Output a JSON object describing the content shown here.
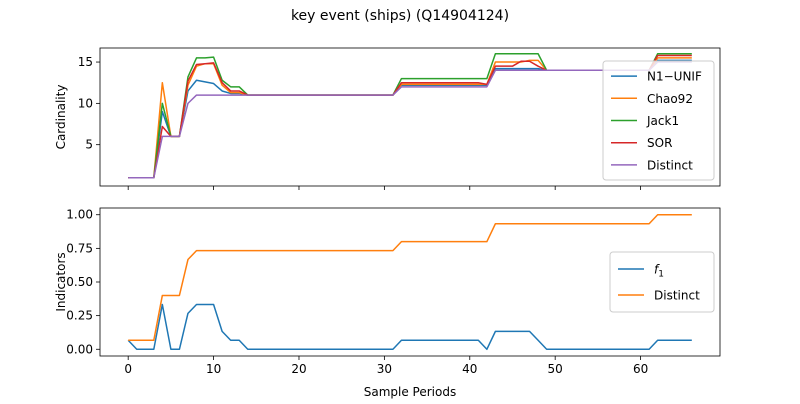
{
  "title": "key event (ships) (Q14904124)",
  "colors": {
    "N1": "#1f77b4",
    "Chao92": "#ff7f0e",
    "Jack1": "#2ca02c",
    "SOR": "#d62728",
    "Distinct": "#9467bd"
  },
  "chart_data": [
    {
      "type": "line",
      "ylabel": "Cardinality",
      "xlim": [
        -3.3,
        69.3
      ],
      "ylim": [
        0,
        16.7
      ],
      "xticks": [
        0,
        10,
        20,
        30,
        40,
        50,
        60
      ],
      "yticks": [
        5,
        10,
        15
      ],
      "ytick_labels": [
        "5",
        "10",
        "15"
      ],
      "show_xtick_labels": false,
      "legend_position": "lower-right",
      "series": [
        {
          "name": "N1−UNIF",
          "color": "#1f77b4",
          "values": [
            1,
            1,
            1,
            1,
            9,
            6,
            6,
            11.5,
            12.8,
            12.6,
            12.4,
            11.5,
            11.2,
            11.2,
            11,
            11,
            11,
            11,
            11,
            11,
            11,
            11,
            11,
            11,
            11,
            11,
            11,
            11,
            11,
            11,
            11,
            11,
            12.2,
            12.2,
            12.2,
            12.2,
            12.2,
            12.2,
            12.2,
            12.2,
            12.2,
            12.2,
            12.2,
            14.2,
            14.2,
            14.2,
            14.2,
            14.2,
            14.2,
            14,
            14,
            14,
            14,
            14,
            14,
            14,
            14,
            14,
            14,
            14,
            14,
            14,
            15.2,
            15.2,
            15.2,
            15.2,
            15.2
          ]
        },
        {
          "name": "Chao92",
          "color": "#ff7f0e",
          "values": [
            1,
            1,
            1,
            1,
            12.5,
            6,
            6,
            12.2,
            14.5,
            14.8,
            14.8,
            12.2,
            11.3,
            11.3,
            11,
            11,
            11,
            11,
            11,
            11,
            11,
            11,
            11,
            11,
            11,
            11,
            11,
            11,
            11,
            11,
            11,
            11,
            12.3,
            12.3,
            12.3,
            12.3,
            12.3,
            12.3,
            12.3,
            12.3,
            12.3,
            12.3,
            12.3,
            15,
            15,
            15,
            15,
            15.2,
            15.2,
            14,
            14,
            14,
            14,
            14,
            14,
            14,
            14,
            14,
            14,
            14,
            14,
            14,
            15.5,
            15.5,
            15.5,
            15.5,
            15.5
          ]
        },
        {
          "name": "Jack1",
          "color": "#2ca02c",
          "values": [
            1,
            1,
            1,
            1,
            10,
            6,
            6,
            13.2,
            15.5,
            15.5,
            15.6,
            12.8,
            12,
            12,
            11,
            11,
            11,
            11,
            11,
            11,
            11,
            11,
            11,
            11,
            11,
            11,
            11,
            11,
            11,
            11,
            11,
            11,
            13,
            13,
            13,
            13,
            13,
            13,
            13,
            13,
            13,
            13,
            13,
            16,
            16,
            16,
            16,
            16,
            16,
            14,
            14,
            14,
            14,
            14,
            14,
            14,
            14,
            14,
            14,
            14,
            14,
            14,
            16,
            16,
            16,
            16,
            16
          ]
        },
        {
          "name": "SOR",
          "color": "#d62728",
          "values": [
            1,
            1,
            1,
            1,
            7.2,
            6,
            6,
            12.7,
            14.7,
            14.8,
            14.9,
            12.5,
            11.5,
            11.5,
            11,
            11,
            11,
            11,
            11,
            11,
            11,
            11,
            11,
            11,
            11,
            11,
            11,
            11,
            11,
            11,
            11,
            11,
            12.5,
            12.5,
            12.5,
            12.5,
            12.5,
            12.5,
            12.5,
            12.5,
            12.5,
            12.5,
            12.3,
            14.5,
            14.5,
            14.5,
            15.1,
            15.1,
            14.5,
            14,
            14,
            14,
            14,
            14,
            14,
            14,
            14,
            14,
            14,
            14,
            14,
            14,
            15.8,
            15.8,
            15.8,
            15.8,
            15.8
          ]
        },
        {
          "name": "Distinct",
          "color": "#9467bd",
          "values": [
            1,
            1,
            1,
            1,
            6,
            6,
            6,
            10,
            11,
            11,
            11,
            11,
            11,
            11,
            11,
            11,
            11,
            11,
            11,
            11,
            11,
            11,
            11,
            11,
            11,
            11,
            11,
            11,
            11,
            11,
            11,
            11,
            12,
            12,
            12,
            12,
            12,
            12,
            12,
            12,
            12,
            12,
            12,
            14,
            14,
            14,
            14,
            14,
            14,
            14,
            14,
            14,
            14,
            14,
            14,
            14,
            14,
            14,
            14,
            14,
            14,
            14,
            15,
            15,
            15,
            15,
            15
          ]
        }
      ]
    },
    {
      "type": "line",
      "xlabel": "Sample Periods",
      "ylabel": "Indicators",
      "xlim": [
        -3.3,
        69.3
      ],
      "ylim": [
        -0.05,
        1.05
      ],
      "xticks": [
        0,
        10,
        20,
        30,
        40,
        50,
        60
      ],
      "xtick_labels": [
        "0",
        "10",
        "20",
        "30",
        "40",
        "50",
        "60"
      ],
      "yticks": [
        0,
        0.25,
        0.5,
        0.75,
        1.0
      ],
      "ytick_labels": [
        "0.00",
        "0.25",
        "0.50",
        "0.75",
        "1.00"
      ],
      "legend_position": "center-right",
      "series": [
        {
          "name": "f1",
          "label_base": "f",
          "label_sub": "1",
          "color": "#1f77b4",
          "values": [
            0.067,
            0,
            0,
            0,
            0.333,
            0,
            0,
            0.267,
            0.333,
            0.333,
            0.333,
            0.133,
            0.067,
            0.067,
            0,
            0,
            0,
            0,
            0,
            0,
            0,
            0,
            0,
            0,
            0,
            0,
            0,
            0,
            0,
            0,
            0,
            0,
            0.067,
            0.067,
            0.067,
            0.067,
            0.067,
            0.067,
            0.067,
            0.067,
            0.067,
            0.067,
            0,
            0.133,
            0.133,
            0.133,
            0.133,
            0.133,
            0.067,
            0,
            0,
            0,
            0,
            0,
            0,
            0,
            0,
            0,
            0,
            0,
            0,
            0,
            0.067,
            0.067,
            0.067,
            0.067,
            0.067
          ]
        },
        {
          "name": "Distinct",
          "color": "#ff7f0e",
          "values": [
            0.067,
            0.067,
            0.067,
            0.067,
            0.4,
            0.4,
            0.4,
            0.667,
            0.733,
            0.733,
            0.733,
            0.733,
            0.733,
            0.733,
            0.733,
            0.733,
            0.733,
            0.733,
            0.733,
            0.733,
            0.733,
            0.733,
            0.733,
            0.733,
            0.733,
            0.733,
            0.733,
            0.733,
            0.733,
            0.733,
            0.733,
            0.733,
            0.8,
            0.8,
            0.8,
            0.8,
            0.8,
            0.8,
            0.8,
            0.8,
            0.8,
            0.8,
            0.8,
            0.933,
            0.933,
            0.933,
            0.933,
            0.933,
            0.933,
            0.933,
            0.933,
            0.933,
            0.933,
            0.933,
            0.933,
            0.933,
            0.933,
            0.933,
            0.933,
            0.933,
            0.933,
            0.933,
            1,
            1,
            1,
            1,
            1
          ]
        }
      ]
    }
  ]
}
